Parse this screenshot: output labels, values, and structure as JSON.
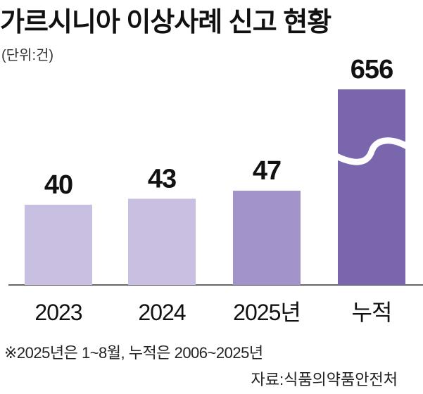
{
  "chart_data": {
    "type": "bar",
    "title": "가르시니아 이상사례 신고 현황",
    "unit_label": "(단위:건)",
    "categories": [
      "2023",
      "2024",
      "2025년",
      "누적"
    ],
    "values": [
      40,
      43,
      47,
      656
    ],
    "value_labels": [
      "40",
      "43",
      "47",
      "656"
    ],
    "axis_break_on": "누적",
    "colors": [
      "#c9bfe0",
      "#c9bfe0",
      "#a293cb",
      "#7a66ad"
    ],
    "footnote": "※2025년은 1~8월, 누적은 2006~2025년",
    "source": "자료:식품의약품안전처",
    "xlabel": "",
    "ylabel": "",
    "grid": false
  }
}
